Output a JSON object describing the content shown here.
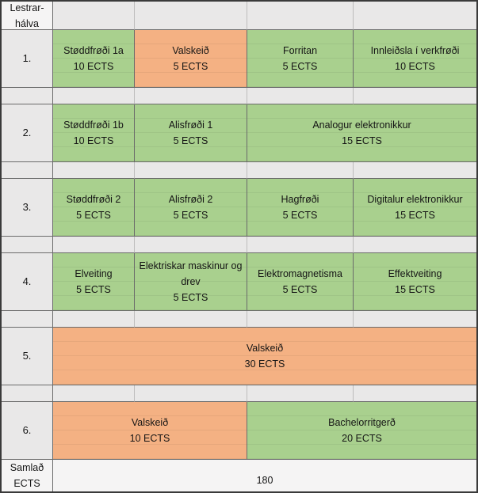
{
  "palette": {
    "green": "#A9D08E",
    "orange": "#F4B183",
    "gray": "#E9E8E8"
  },
  "header": {
    "row_label": "Lestrar-hálva"
  },
  "footer": {
    "label": "Samlað ECTS",
    "total": "180"
  },
  "semesters": [
    {
      "number": "1.",
      "courses": [
        {
          "title": "Støddfrøði 1a",
          "ects": "10 ECTS",
          "color": "green",
          "span": 1
        },
        {
          "title": "Valskeið",
          "ects": "5 ECTS",
          "color": "orange",
          "span": 1
        },
        {
          "title": "Forritan",
          "ects": "5 ECTS",
          "color": "green",
          "span": 1
        },
        {
          "title": "Innleiðsla í verkfrøði",
          "ects": "10 ECTS",
          "color": "green",
          "span": 1
        }
      ]
    },
    {
      "number": "2.",
      "courses": [
        {
          "title": "Støddfrøði 1b",
          "ects": "10 ECTS",
          "color": "green",
          "span": 1
        },
        {
          "title": "Alisfrøði 1",
          "ects": "5 ECTS",
          "color": "green",
          "span": 1
        },
        {
          "title": "Analogur elektronikkur",
          "ects": "15 ECTS",
          "color": "green",
          "span": 2
        }
      ]
    },
    {
      "number": "3.",
      "courses": [
        {
          "title": "Støddfrøði 2",
          "ects": "5 ECTS",
          "color": "green",
          "span": 1
        },
        {
          "title": "Alisfrøði 2",
          "ects": "5 ECTS",
          "color": "green",
          "span": 1
        },
        {
          "title": "Hagfrøði",
          "ects": "5 ECTS",
          "color": "green",
          "span": 1
        },
        {
          "title": "Digitalur elektronikkur",
          "ects": "15 ECTS",
          "color": "green",
          "span": 1
        }
      ]
    },
    {
      "number": "4.",
      "courses": [
        {
          "title": "Elveiting",
          "ects": "5 ECTS",
          "color": "green",
          "span": 1
        },
        {
          "title": "Elektriskar maskinur og drev",
          "ects": "5 ECTS",
          "color": "green",
          "span": 1
        },
        {
          "title": "Elektromagnetisma",
          "ects": "5 ECTS",
          "color": "green",
          "span": 1
        },
        {
          "title": "Effektveiting",
          "ects": "15 ECTS",
          "color": "green",
          "span": 1
        }
      ]
    },
    {
      "number": "5.",
      "courses": [
        {
          "title": "Valskeið",
          "ects": "30 ECTS",
          "color": "orange",
          "span": 4
        }
      ]
    },
    {
      "number": "6.",
      "courses": [
        {
          "title": "Valskeið",
          "ects": "10 ECTS",
          "color": "orange",
          "span": 2
        },
        {
          "title": "Bachelorritgerð",
          "ects": "20 ECTS",
          "color": "green",
          "span": 2
        }
      ]
    }
  ]
}
